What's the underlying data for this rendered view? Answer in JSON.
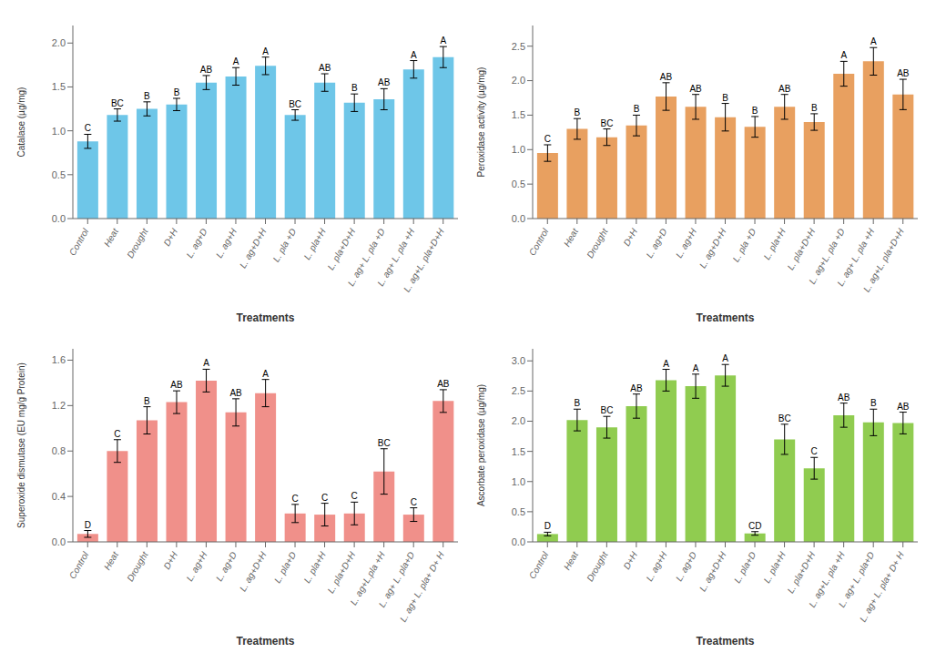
{
  "chart_data": [
    {
      "type": "bar",
      "x_label": "Treatments",
      "y_label": "Catalase (µg/mg)",
      "color": "#6EC6E8",
      "grid": false,
      "categories": [
        "Control",
        "Heat",
        "Drought",
        "D+H",
        "L. ag+D",
        "L. ag+H",
        "L. ag+D+H",
        "L. pla +D",
        "L. pla+H",
        "L. pla+D+H",
        "L. ag+ L. pla +D",
        "L. ag+ L. pla +H",
        "L. ag+L. pla+D+H"
      ],
      "values": [
        0.88,
        1.18,
        1.25,
        1.3,
        1.55,
        1.62,
        1.74,
        1.18,
        1.55,
        1.32,
        1.36,
        1.7,
        1.84
      ],
      "errors": [
        0.08,
        0.07,
        0.08,
        0.07,
        0.08,
        0.1,
        0.1,
        0.06,
        0.1,
        0.1,
        0.12,
        0.1,
        0.12
      ],
      "annotations": [
        "C",
        "BC",
        "B",
        "B",
        "AB",
        "A",
        "A",
        "BC",
        "AB",
        "B",
        "AB",
        "A",
        "A"
      ],
      "ylim": [
        0,
        2.2
      ],
      "yticks": [
        {
          "value": 0,
          "label": "0.0"
        },
        0.5,
        {
          "value": 1,
          "label": "1.0"
        },
        1.5,
        {
          "value": 2,
          "label": "2.0"
        }
      ]
    },
    {
      "type": "bar",
      "x_label": "Treatments",
      "y_label": "Peroxidase activity (µg/mg)",
      "color": "#E8A060",
      "grid": false,
      "categories": [
        "Control",
        "Heat",
        "Drought",
        "D+H",
        "L. ag+D",
        "L. ag+H",
        "L. ag+D+H",
        "L. pla +D",
        "L. pla+H",
        "L. pla+D+H",
        "L. ag+L. pla +D",
        "L. ag+ L. pla +H",
        "L. ag+L. pla+D+H"
      ],
      "values": [
        0.95,
        1.3,
        1.18,
        1.35,
        1.77,
        1.62,
        1.47,
        1.33,
        1.62,
        1.4,
        2.1,
        2.28,
        1.8
      ],
      "errors": [
        0.12,
        0.15,
        0.12,
        0.15,
        0.2,
        0.18,
        0.2,
        0.15,
        0.18,
        0.12,
        0.18,
        0.2,
        0.22
      ],
      "annotations": [
        "C",
        "B",
        "BC",
        "B",
        "AB",
        "AB",
        "B",
        "B",
        "AB",
        "B",
        "A",
        "A",
        "AB"
      ],
      "ylim": [
        0,
        2.8
      ],
      "yticks": [
        {
          "value": 0,
          "label": "0.0"
        },
        0.5,
        {
          "value": 1,
          "label": "1.0"
        },
        1.5,
        {
          "value": 2,
          "label": "2.0"
        },
        2.5
      ]
    },
    {
      "type": "bar",
      "x_label": "Treatments",
      "y_label": "Superoxide dismutase (EU mg/g Protein)",
      "color": "#F0908A",
      "grid": false,
      "categories": [
        "Control",
        "Heat",
        "Drought",
        "D+H",
        "L. ag+H",
        "L. ag+D",
        "L. ag+D+H",
        "L. pla+D",
        "L. pla+H",
        "L. pla+D+H",
        "L. ag+L.pla +H",
        "L. ag+ L. pla+D",
        "L. ag+ L. pla+ D+ H"
      ],
      "values": [
        0.07,
        0.8,
        1.07,
        1.23,
        1.42,
        1.14,
        1.31,
        0.25,
        0.24,
        0.25,
        0.62,
        0.24,
        1.24
      ],
      "errors": [
        0.03,
        0.1,
        0.12,
        0.1,
        0.1,
        0.12,
        0.12,
        0.08,
        0.1,
        0.1,
        0.2,
        0.06,
        0.1
      ],
      "annotations": [
        "D",
        "C",
        "B",
        "AB",
        "A",
        "AB",
        "A",
        "C",
        "C",
        "C",
        "BC",
        "C",
        "AB"
      ],
      "ylim": [
        0,
        1.7
      ],
      "yticks": [
        {
          "value": 0,
          "label": "0.0"
        },
        0.4,
        0.8,
        1.2,
        1.6
      ]
    },
    {
      "type": "bar",
      "x_label": "Treatments",
      "y_label": "Ascorbate peroxidase (µg/mg)",
      "color": "#90CC50",
      "grid": false,
      "categories": [
        "Control",
        "Heat",
        "Drought",
        "D+H",
        "L. ag+H",
        "L. ag+D",
        "L. ag+D+H",
        "L. pla+D",
        "L. pla+H",
        "L. pla+D+H",
        "L. ag+L. pla +H",
        "L. ag+ L. pla+D",
        "L. ag+ L. pla+ D+ H"
      ],
      "values": [
        0.13,
        2.02,
        1.9,
        2.25,
        2.68,
        2.58,
        2.76,
        0.14,
        1.7,
        1.22,
        2.1,
        1.98,
        1.97
      ],
      "errors": [
        0.03,
        0.18,
        0.18,
        0.2,
        0.18,
        0.2,
        0.18,
        0.03,
        0.25,
        0.18,
        0.2,
        0.22,
        0.18
      ],
      "annotations": [
        "D",
        "B",
        "BC",
        "AB",
        "A",
        "A",
        "A",
        "CD",
        "BC",
        "C",
        "AB",
        "B",
        "AB"
      ],
      "ylim": [
        0,
        3.2
      ],
      "yticks": [
        {
          "value": 0,
          "label": "0.0"
        },
        0.5,
        {
          "value": 1,
          "label": "1.0"
        },
        1.5,
        {
          "value": 2,
          "label": "2.0"
        },
        2.5,
        {
          "value": 3,
          "label": "3.0"
        }
      ]
    }
  ]
}
